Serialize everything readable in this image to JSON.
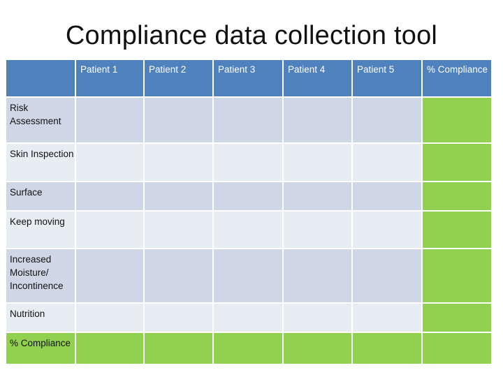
{
  "slide": {
    "title": "Compliance data collection tool"
  },
  "columns": [
    "Patient 1",
    "Patient 2",
    "Patient 3",
    "Patient 4",
    "Patient 5",
    "% Compliance"
  ],
  "rows": [
    "Risk Assessment",
    "Skin Inspection",
    "Surface",
    "Keep moving",
    "Increased Moisture/ Incontinence",
    "Nutrition",
    "% Compliance"
  ],
  "colors": {
    "header": "#4f81bd",
    "band_dark": "#cfd7e6",
    "band_light": "#e8edf4",
    "compliance": "#92d050"
  }
}
